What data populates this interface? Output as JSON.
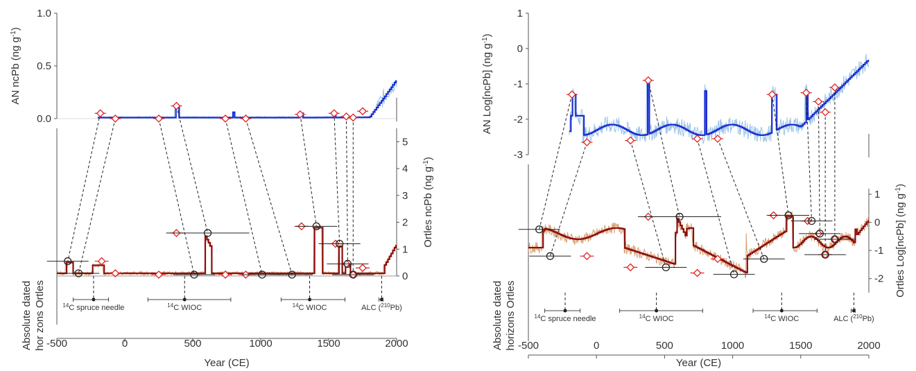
{
  "colors": {
    "an_raw": "#9cc3e8",
    "an_line": "#1a2fd0",
    "ortles_raw": "#d9a071",
    "ortles_line": "#8b0e0e",
    "marker_red": "#e02020",
    "marker_black": "#222222"
  },
  "panels": [
    {
      "id": "linear",
      "top": {
        "ylabel_main": "AN ncPb",
        "ylabel_unit": "(ng g",
        "ylabel_sup": "-1",
        "ylabel_close": ")",
        "yticks": [
          "0.0",
          "0.5",
          "1.0"
        ]
      },
      "bottom": {
        "ylabel_main": "Ortles ncPb",
        "ylabel_unit": "(ng g",
        "ylabel_sup": "-1",
        "ylabel_close": ")",
        "yticks": [
          "0",
          "1",
          "2",
          "3",
          "4",
          "5"
        ],
        "side_label_1": "Absolute dated",
        "side_label_2": "hor zons Ortles"
      },
      "xticks": [
        "-500",
        "0",
        "500",
        "1000",
        "1500",
        "2000"
      ],
      "xlabel": "Year (CE)",
      "horizons": [
        {
          "sup": "14",
          "label": "C spruce needle"
        },
        {
          "sup": "14",
          "label": "C WIOC"
        },
        {
          "sup": "14",
          "label": "C WIOC"
        },
        {
          "label": "ALC (",
          "sup": "210",
          "label2": "Pb)"
        }
      ]
    },
    {
      "id": "log",
      "top": {
        "ylabel_main": "AN Log[ncPb]",
        "ylabel_unit": "(ng g",
        "ylabel_sup": "-1",
        "ylabel_close": ")",
        "yticks": [
          "-3",
          "-2",
          "-1",
          "0",
          "1"
        ]
      },
      "bottom": {
        "ylabel_main": "Ortles Log[ncPb]",
        "ylabel_unit": "(ng g",
        "ylabel_sup": "-1",
        "ylabel_close": ")",
        "yticks": [
          "-2",
          "-1",
          "0",
          "1"
        ],
        "side_label_1": "Absolute dated",
        "side_label_2": "horizons Ortles"
      },
      "xticks": [
        "-500",
        "0",
        "500",
        "1000",
        "1500",
        "2000"
      ],
      "xlabel": "Year (CE)",
      "horizons": [
        {
          "sup": "14",
          "label": "C spruce needle"
        },
        {
          "sup": "14",
          "label": "C WIOC"
        },
        {
          "sup": "14",
          "label": "C WIOC"
        },
        {
          "label": "ALC (",
          "sup": "210",
          "label2": "Pb)"
        }
      ]
    }
  ],
  "chart_data": [
    {
      "type": "line",
      "subtype": "stacked-linear",
      "xlim": [
        -500,
        2000
      ],
      "top_ylim": [
        0.0,
        1.0
      ],
      "bottom_ylim": [
        0,
        5.5
      ],
      "an_markers": [
        [
          -180,
          0.05
        ],
        [
          -70,
          0.0
        ],
        [
          250,
          0.0
        ],
        [
          380,
          0.12
        ],
        [
          740,
          0.0
        ],
        [
          890,
          0.0
        ],
        [
          1290,
          0.04
        ],
        [
          1540,
          0.05
        ],
        [
          1630,
          0.02
        ],
        [
          1680,
          0.01
        ],
        [
          1750,
          0.07
        ]
      ],
      "ortles_red_markers": [
        [
          380,
          1.6
        ],
        [
          -170,
          0.55
        ],
        [
          -70,
          0.1
        ],
        [
          250,
          0.05
        ],
        [
          740,
          0.05
        ],
        [
          890,
          0.05
        ],
        [
          1300,
          1.85
        ],
        [
          1550,
          1.2
        ],
        [
          1630,
          0.45
        ],
        [
          1680,
          0.05
        ],
        [
          1750,
          0.3
        ]
      ],
      "ortles_black_markers": [
        [
          -420,
          0.55
        ],
        [
          -340,
          0.1
        ],
        [
          510,
          0.05
        ],
        [
          610,
          1.6
        ],
        [
          1010,
          0.05
        ],
        [
          1230,
          0.05
        ],
        [
          1410,
          1.85
        ],
        [
          1580,
          1.2
        ],
        [
          1640,
          0.45
        ],
        [
          1680,
          0.05
        ]
      ],
      "horizon_years": [
        -230,
        440,
        1360,
        1890
      ]
    },
    {
      "type": "line",
      "subtype": "stacked-log",
      "xlim": [
        -500,
        2000
      ],
      "top_ylim": [
        -3,
        1
      ],
      "bottom_ylim": [
        -2.5,
        1.2
      ],
      "an_markers": [
        [
          -180,
          -1.3
        ],
        [
          -70,
          -2.65
        ],
        [
          250,
          -2.6
        ],
        [
          380,
          -0.9
        ],
        [
          740,
          -2.55
        ],
        [
          890,
          -2.55
        ],
        [
          1290,
          -1.3
        ],
        [
          1540,
          -1.25
        ],
        [
          1630,
          -1.5
        ],
        [
          1680,
          -1.8
        ],
        [
          1750,
          -1.1
        ]
      ],
      "ortles_red_markers": [
        [
          380,
          0.2
        ],
        [
          -70,
          -1.2
        ],
        [
          250,
          -1.6
        ],
        [
          740,
          -1.8
        ],
        [
          890,
          -1.3
        ],
        [
          1300,
          0.25
        ],
        [
          1550,
          0.05
        ],
        [
          1630,
          -0.4
        ],
        [
          1680,
          -1.15
        ],
        [
          1750,
          -0.6
        ]
      ],
      "ortles_black_markers": [
        [
          -420,
          -0.25
        ],
        [
          -340,
          -1.2
        ],
        [
          510,
          -1.6
        ],
        [
          610,
          0.2
        ],
        [
          1010,
          -1.85
        ],
        [
          1230,
          -1.3
        ],
        [
          1410,
          0.25
        ],
        [
          1580,
          0.05
        ],
        [
          1640,
          -0.4
        ],
        [
          1680,
          -1.15
        ],
        [
          1750,
          -0.6
        ]
      ],
      "horizon_years": [
        -230,
        440,
        1360,
        1890
      ]
    }
  ]
}
